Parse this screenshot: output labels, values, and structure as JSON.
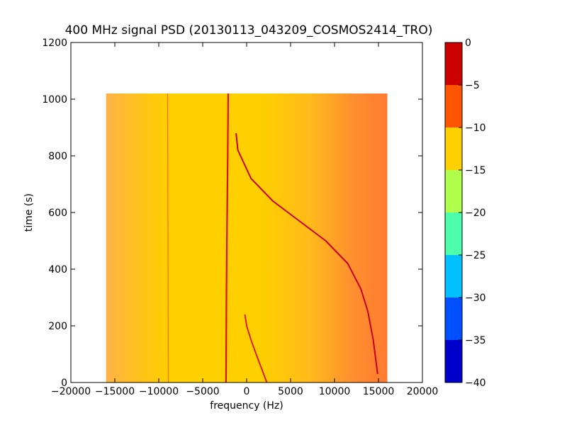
{
  "chart_data": {
    "type": "heatmap",
    "title": "400 MHz signal PSD (20130113_043209_COSMOS2414_TRO)",
    "xlabel": "frequency (Hz)",
    "ylabel": "time (s)",
    "xlim": [
      -20000,
      20000
    ],
    "ylim": [
      0,
      1200
    ],
    "x_ticks": [
      -20000,
      -15000,
      -10000,
      -5000,
      0,
      5000,
      10000,
      15000,
      20000
    ],
    "y_ticks": [
      0,
      200,
      400,
      600,
      800,
      1000,
      1200
    ],
    "data_extent": {
      "x": [
        -16000,
        16000
      ],
      "y": [
        0,
        1020
      ]
    },
    "colorbar": {
      "range": [
        -40,
        0
      ],
      "ticks": [
        0,
        -5,
        -10,
        -15,
        -20,
        -25,
        -30,
        -35,
        -40
      ],
      "levels": [
        {
          "from": -40,
          "to": -35,
          "color": "#0000cd"
        },
        {
          "from": -35,
          "to": -30,
          "color": "#0050ff"
        },
        {
          "from": -30,
          "to": -25,
          "color": "#00c0ff"
        },
        {
          "from": -25,
          "to": -20,
          "color": "#4dffaa"
        },
        {
          "from": -20,
          "to": -15,
          "color": "#b0ff4d"
        },
        {
          "from": -15,
          "to": -10,
          "color": "#ffd000"
        },
        {
          "from": -10,
          "to": -5,
          "color": "#ff5500"
        },
        {
          "from": -5,
          "to": 0,
          "color": "#cd0000"
        }
      ]
    },
    "background_level_db": -12,
    "edge_level_db": -9,
    "features": [
      {
        "name": "vertical carrier",
        "points": [
          [
            -2100,
            1020
          ],
          [
            -2150,
            800
          ],
          [
            -2250,
            500
          ],
          [
            -2300,
            300
          ],
          [
            -2350,
            0
          ]
        ]
      },
      {
        "name": "weak line",
        "points": [
          [
            -9000,
            1020
          ],
          [
            -8900,
            0
          ]
        ]
      },
      {
        "name": "doppler curve",
        "points": [
          [
            -1200,
            880
          ],
          [
            -1000,
            820
          ],
          [
            500,
            720
          ],
          [
            3000,
            640
          ],
          [
            6000,
            570
          ],
          [
            9000,
            500
          ],
          [
            11500,
            420
          ],
          [
            13000,
            330
          ],
          [
            13800,
            250
          ],
          [
            14400,
            150
          ],
          [
            14900,
            30
          ]
        ]
      },
      {
        "name": "doppler curve lower",
        "points": [
          [
            -200,
            240
          ],
          [
            0,
            200
          ],
          [
            500,
            150
          ],
          [
            1200,
            90
          ],
          [
            2300,
            0
          ]
        ]
      }
    ]
  }
}
